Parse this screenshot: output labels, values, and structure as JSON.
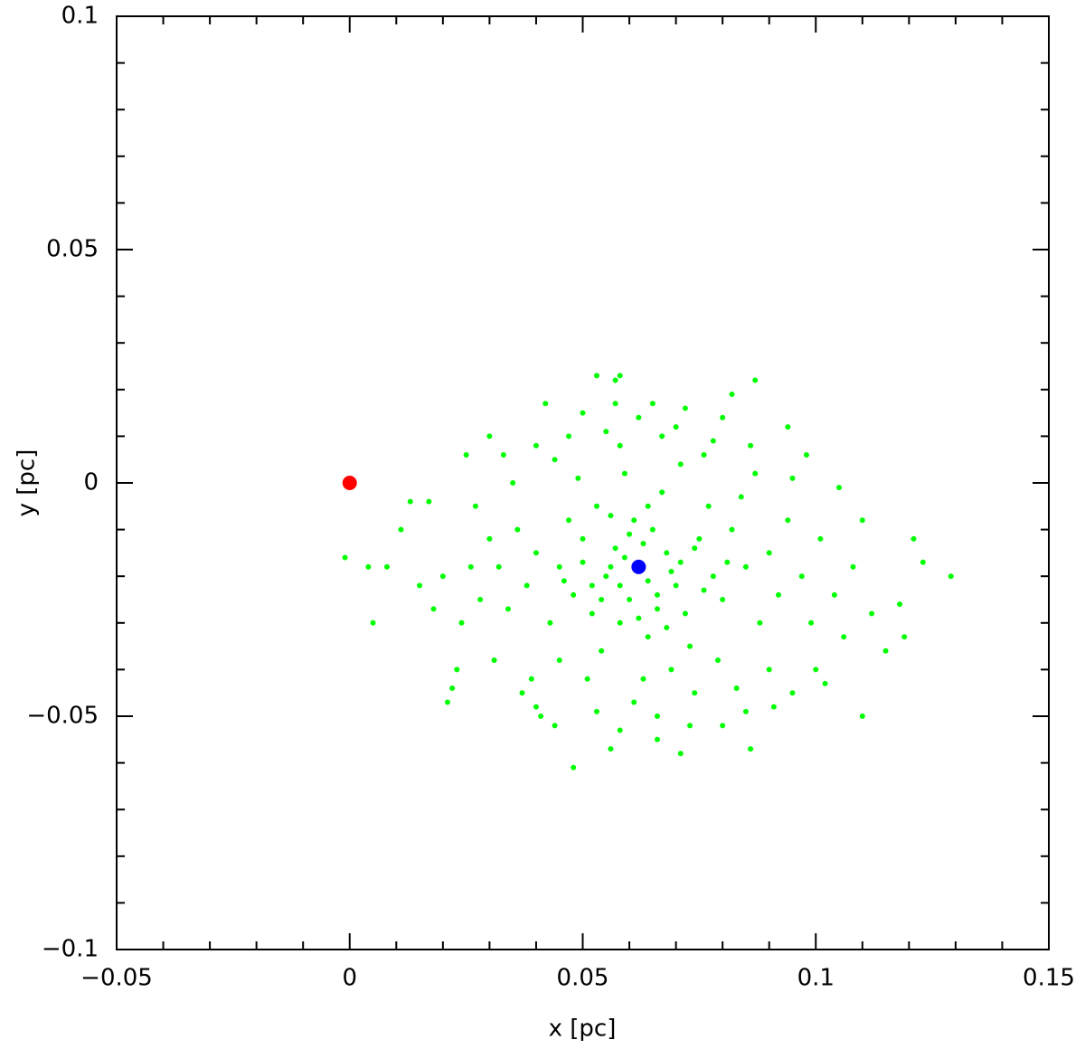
{
  "chart_data": {
    "type": "scatter",
    "xlabel": "x [pc]",
    "ylabel": "y [pc]",
    "xlim": [
      -0.05,
      0.15
    ],
    "ylim": [
      -0.1,
      0.1
    ],
    "xticks": [
      {
        "value": -0.05,
        "label": "−0.05"
      },
      0,
      0.05,
      0.1,
      0.15
    ],
    "yticks": [
      {
        "value": -0.1,
        "label": "−0.1"
      },
      {
        "value": -0.05,
        "label": "−0.05"
      },
      0,
      0.05,
      0.1
    ],
    "xminorticks": [
      -0.04,
      -0.03,
      -0.02,
      -0.01,
      0.01,
      0.02,
      0.03,
      0.04,
      0.06,
      0.07,
      0.08,
      0.09,
      0.11,
      0.12,
      0.13,
      0.14
    ],
    "yminorticks": [
      -0.09,
      -0.08,
      -0.07,
      -0.06,
      -0.04,
      -0.03,
      -0.02,
      -0.01,
      0.01,
      0.02,
      0.03,
      0.04,
      0.06,
      0.07,
      0.08,
      0.09
    ],
    "series": [
      {
        "color": "#00ff00",
        "x": [
          0.129,
          0.121,
          0.123,
          0.11,
          0.119,
          -0.001,
          0.004,
          0.005,
          0.008,
          0.021,
          0.048,
          0.053,
          0.057,
          0.058,
          0.087,
          0.071,
          0.086,
          0.056,
          0.011,
          0.013,
          0.017,
          0.105,
          0.094,
          0.082,
          0.042,
          0.065,
          0.025,
          0.03,
          0.022,
          0.04,
          0.095,
          0.1,
          0.115,
          0.118,
          0.08,
          0.062,
          0.055,
          0.068,
          0.06,
          0.07,
          0.05,
          0.065,
          0.058,
          0.072,
          0.048,
          0.075,
          0.053,
          0.064,
          0.045,
          0.078,
          0.067,
          0.057,
          0.061,
          0.052,
          0.073,
          0.08,
          0.043,
          0.069,
          0.047,
          0.082,
          0.04,
          0.059,
          0.066,
          0.054,
          0.077,
          0.085,
          0.038,
          0.063,
          0.071,
          0.049,
          0.088,
          0.036,
          0.074,
          0.051,
          0.084,
          0.09,
          0.034,
          0.058,
          0.067,
          0.079,
          0.045,
          0.092,
          0.032,
          0.061,
          0.076,
          0.044,
          0.087,
          0.055,
          0.094,
          0.03,
          0.083,
          0.039,
          0.097,
          0.028,
          0.066,
          0.099,
          0.026,
          0.07,
          0.047,
          0.09,
          0.035,
          0.101,
          0.053,
          0.078,
          0.024,
          0.104,
          0.04,
          0.086,
          0.058,
          0.031,
          0.095,
          0.073,
          0.02,
          0.106,
          0.062,
          0.037,
          0.091,
          0.05,
          0.108,
          0.018,
          0.08,
          0.044,
          0.098,
          0.027,
          0.112,
          0.015,
          0.066,
          0.033,
          0.102,
          0.085,
          0.057,
          0.023,
          0.11,
          0.072,
          0.041,
          0.056,
          0.064,
          0.059,
          0.069,
          0.052,
          0.063,
          0.071,
          0.054,
          0.06,
          0.066,
          0.046,
          0.076,
          0.058,
          0.062,
          0.068,
          0.05,
          0.074,
          0.056,
          0.064,
          0.081
        ],
        "values": [
          -0.02,
          -0.012,
          -0.017,
          -0.05,
          -0.033,
          -0.016,
          -0.018,
          -0.03,
          -0.018,
          -0.047,
          -0.061,
          0.023,
          0.022,
          0.023,
          0.022,
          -0.058,
          -0.057,
          -0.057,
          -0.01,
          -0.004,
          -0.004,
          -0.001,
          0.012,
          0.019,
          0.017,
          0.017,
          0.006,
          0.01,
          -0.044,
          -0.048,
          -0.045,
          -0.04,
          -0.036,
          -0.026,
          -0.052,
          -0.018,
          -0.02,
          -0.015,
          -0.025,
          -0.022,
          -0.012,
          -0.01,
          -0.03,
          -0.028,
          -0.024,
          -0.012,
          -0.005,
          -0.033,
          -0.018,
          -0.02,
          -0.002,
          -0.014,
          -0.008,
          -0.028,
          -0.035,
          -0.025,
          -0.03,
          -0.04,
          -0.008,
          -0.01,
          -0.015,
          0.002,
          -0.027,
          -0.036,
          -0.005,
          -0.018,
          -0.022,
          -0.042,
          0.004,
          0.001,
          -0.03,
          -0.01,
          -0.045,
          -0.042,
          -0.003,
          -0.015,
          -0.027,
          0.008,
          0.01,
          -0.038,
          -0.038,
          -0.024,
          -0.018,
          -0.047,
          0.006,
          0.005,
          0.002,
          0.011,
          -0.008,
          -0.012,
          -0.044,
          -0.042,
          -0.02,
          -0.025,
          -0.05,
          -0.03,
          -0.018,
          0.012,
          0.01,
          -0.04,
          0.0,
          -0.012,
          -0.049,
          0.009,
          -0.03,
          -0.024,
          0.008,
          0.008,
          -0.053,
          -0.038,
          0.001,
          -0.052,
          -0.02,
          -0.033,
          0.014,
          -0.045,
          -0.048,
          0.015,
          -0.018,
          -0.027,
          0.014,
          -0.052,
          0.006,
          -0.005,
          -0.028,
          -0.022,
          -0.055,
          0.006,
          -0.043,
          -0.049,
          0.017,
          -0.04,
          -0.008,
          0.016,
          -0.05,
          -0.018,
          -0.021,
          -0.016,
          -0.019,
          -0.022,
          -0.013,
          -0.017,
          -0.025,
          -0.011,
          -0.024,
          -0.021,
          -0.023,
          -0.022,
          -0.029,
          -0.031,
          -0.017,
          -0.014,
          -0.007,
          -0.005,
          -0.017
        ]
      },
      {
        "color": "#ff0000",
        "x": [
          0
        ],
        "values": [
          0
        ]
      },
      {
        "color": "#0000ff",
        "x": [
          0.062
        ],
        "values": [
          -0.018
        ]
      }
    ]
  }
}
